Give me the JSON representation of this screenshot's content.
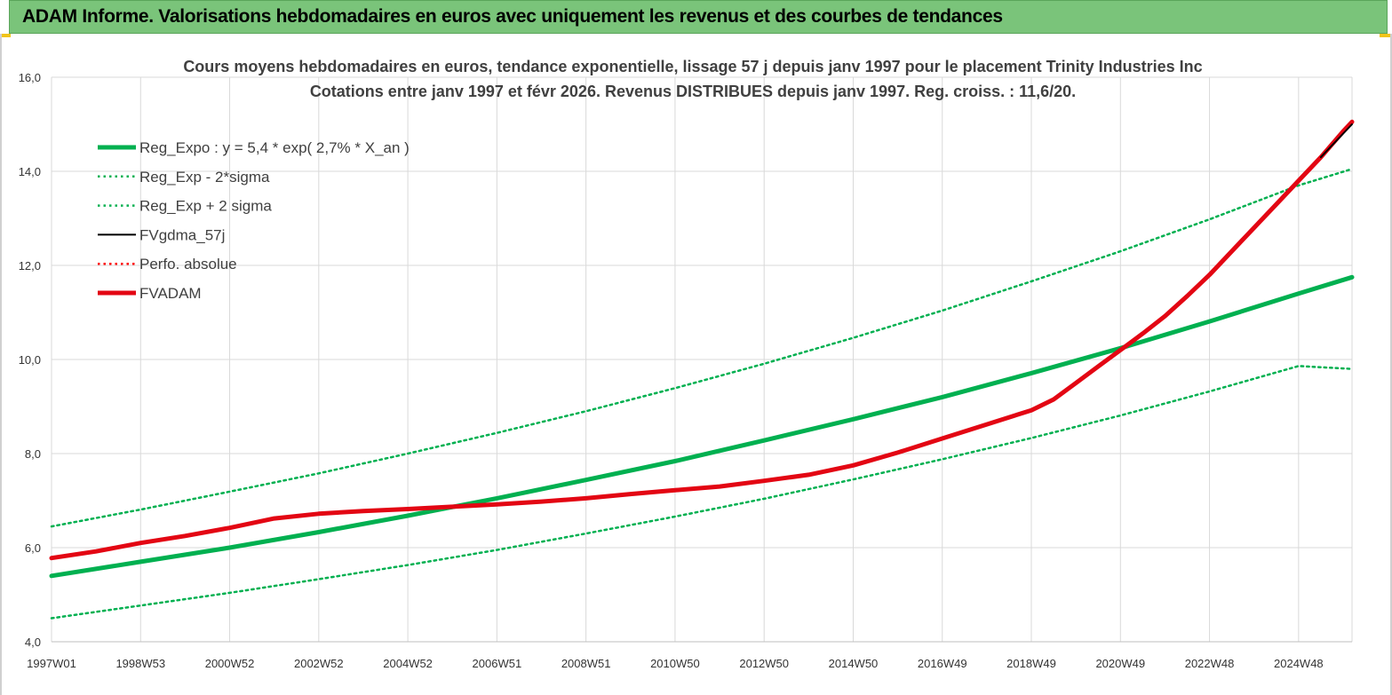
{
  "banner": {
    "title": "ADAM Informe. Valorisations hebdomadaires en euros avec uniquement les revenus et des courbes de tendances"
  },
  "colors": {
    "banner_bg": "#7ac47a",
    "reg_expo": "#00b050",
    "reg_bands": "#00b050",
    "fvgdma": "#000000",
    "perfo": "#ff0000",
    "fvadam": "#e30613"
  },
  "chart_data": {
    "type": "line",
    "title": "Cours moyens hebdomadaires en euros, tendance exponentielle, lissage 57 j depuis janv 1997 pour le placement Trinity Industries Inc",
    "subtitle": "Cotations entre janv 1997 et févr 2026. Revenus DISTRIBUES depuis janv 1997. Reg. croiss. : 11,6/20.",
    "xlabel": "",
    "ylabel": "",
    "x_range": [
      1997.0,
      2026.2
    ],
    "ylim": [
      4.0,
      16.0
    ],
    "grid": true,
    "legend_position": "top-left",
    "y_ticks": [
      "4,0",
      "6,0",
      "8,0",
      "10,0",
      "12,0",
      "14,0",
      "16,0"
    ],
    "x_ticks": [
      {
        "label": "1997W01",
        "x": 1997.0
      },
      {
        "label": "1998W53",
        "x": 1999.0
      },
      {
        "label": "2000W52",
        "x": 2001.0
      },
      {
        "label": "2002W52",
        "x": 2003.0
      },
      {
        "label": "2004W52",
        "x": 2005.0
      },
      {
        "label": "2006W51",
        "x": 2007.0
      },
      {
        "label": "2008W51",
        "x": 2009.0
      },
      {
        "label": "2010W50",
        "x": 2011.0
      },
      {
        "label": "2012W50",
        "x": 2013.0
      },
      {
        "label": "2014W50",
        "x": 2015.0
      },
      {
        "label": "2016W49",
        "x": 2017.0
      },
      {
        "label": "2018W49",
        "x": 2019.0
      },
      {
        "label": "2020W49",
        "x": 2021.0
      },
      {
        "label": "2022W48",
        "x": 2023.0
      },
      {
        "label": "2024W48",
        "x": 2025.0
      }
    ],
    "series": [
      {
        "name": "Reg_Expo : y = 5,4 * exp( 2,7% *  X_an )",
        "style": "solid-thick",
        "color": "#00b050",
        "x": [
          1997.0,
          1999.0,
          2001.0,
          2003.0,
          2005.0,
          2007.0,
          2009.0,
          2011.0,
          2013.0,
          2015.0,
          2017.0,
          2019.0,
          2021.0,
          2023.0,
          2025.0,
          2026.2
        ],
        "values": [
          5.4,
          5.7,
          6.0,
          6.33,
          6.68,
          7.05,
          7.44,
          7.84,
          8.28,
          8.73,
          9.2,
          9.71,
          10.24,
          10.81,
          11.4,
          11.75
        ]
      },
      {
        "name": "Reg_Exp - 2*sigma",
        "style": "dotted",
        "color": "#00b050",
        "x": [
          1997.0,
          1999.0,
          2001.0,
          2003.0,
          2005.0,
          2007.0,
          2009.0,
          2011.0,
          2013.0,
          2015.0,
          2017.0,
          2019.0,
          2021.0,
          2023.0,
          2025.0,
          2026.2
        ],
        "values": [
          4.5,
          4.77,
          5.04,
          5.33,
          5.63,
          5.95,
          6.3,
          6.66,
          7.04,
          7.45,
          7.88,
          8.33,
          8.81,
          9.32,
          9.86,
          9.8
        ]
      },
      {
        "name": "Reg_Exp + 2 sigma",
        "style": "dotted",
        "color": "#00b050",
        "x": [
          1997.0,
          1999.0,
          2001.0,
          2003.0,
          2005.0,
          2007.0,
          2009.0,
          2011.0,
          2013.0,
          2015.0,
          2017.0,
          2019.0,
          2021.0,
          2023.0,
          2025.0,
          2026.2
        ],
        "values": [
          6.45,
          6.81,
          7.19,
          7.58,
          8.0,
          8.44,
          8.9,
          9.39,
          9.91,
          10.46,
          11.04,
          11.66,
          12.3,
          12.98,
          13.7,
          14.05
        ]
      },
      {
        "name": "FVgdma_57j",
        "style": "solid",
        "color": "#000000",
        "x": [
          2025.5,
          2026.0,
          2026.2
        ],
        "values": [
          14.3,
          14.8,
          15.0
        ]
      },
      {
        "name": "Perfo. absolue",
        "style": "dotted",
        "color": "#ff0000",
        "x": [],
        "values": []
      },
      {
        "name": "FVADAM",
        "style": "solid-thick",
        "color": "#e30613",
        "x": [
          1997.0,
          1998.0,
          1999.0,
          2000.0,
          2001.0,
          2002.0,
          2003.0,
          2004.0,
          2005.0,
          2006.0,
          2007.0,
          2008.0,
          2009.0,
          2010.0,
          2011.0,
          2012.0,
          2013.0,
          2014.0,
          2015.0,
          2016.0,
          2017.0,
          2018.0,
          2019.0,
          2019.5,
          2020.0,
          2020.5,
          2021.0,
          2021.5,
          2022.0,
          2022.5,
          2023.0,
          2023.5,
          2024.0,
          2024.5,
          2025.0,
          2025.5,
          2026.0,
          2026.2
        ],
        "values": [
          5.78,
          5.92,
          6.1,
          6.25,
          6.42,
          6.62,
          6.72,
          6.78,
          6.82,
          6.87,
          6.92,
          6.98,
          7.05,
          7.14,
          7.22,
          7.3,
          7.42,
          7.55,
          7.75,
          8.02,
          8.32,
          8.62,
          8.92,
          9.15,
          9.5,
          9.85,
          10.2,
          10.55,
          10.92,
          11.35,
          11.8,
          12.3,
          12.8,
          13.3,
          13.8,
          14.3,
          14.85,
          15.05
        ]
      }
    ]
  }
}
